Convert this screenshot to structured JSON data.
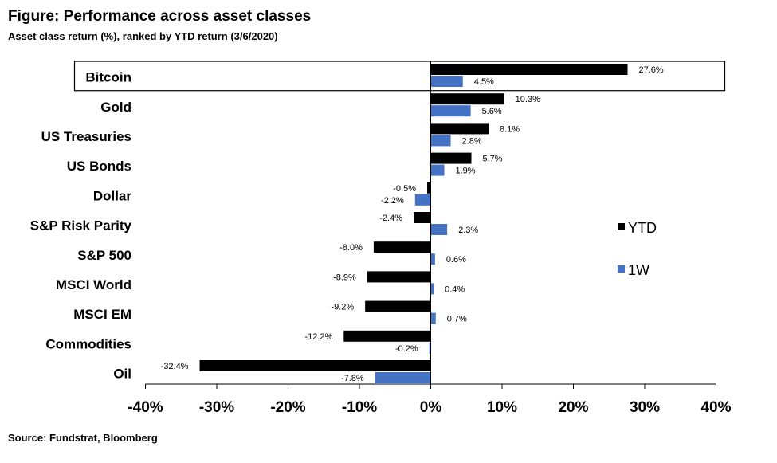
{
  "title": "Figure: Performance across asset classes",
  "subtitle": "Asset class return (%), ranked by YTD return (3/6/2020)",
  "source": "Source: Fundstrat, Bloomberg",
  "colors": {
    "ytd": "#000000",
    "w1": "#4472c4"
  },
  "chart_data": {
    "type": "bar",
    "orientation": "horizontal",
    "categories": [
      "Bitcoin",
      "Gold",
      "US Treasuries",
      "US Bonds",
      "Dollar",
      "S&P Risk Parity",
      "S&P 500",
      "MSCI World",
      "MSCI EM",
      "Commodities",
      "Oil"
    ],
    "series": [
      {
        "name": "YTD",
        "values": [
          27.6,
          10.3,
          8.1,
          5.7,
          -0.5,
          -2.4,
          -8.0,
          -8.9,
          -9.2,
          -12.2,
          -32.4
        ],
        "labels": [
          "27.6%",
          "10.3%",
          "8.1%",
          "5.7%",
          "-0.5%",
          "-2.4%",
          "-8.0%",
          "-8.9%",
          "-9.2%",
          "-12.2%",
          "-32.4%"
        ]
      },
      {
        "name": "1W",
        "values": [
          4.5,
          5.6,
          2.8,
          1.9,
          -2.2,
          2.3,
          0.6,
          0.4,
          0.7,
          -0.2,
          -7.8
        ],
        "labels": [
          "4.5%",
          "5.6%",
          "2.8%",
          "1.9%",
          "-2.2%",
          "2.3%",
          "0.6%",
          "0.4%",
          "0.7%",
          "-0.2%",
          "-7.8%"
        ]
      }
    ],
    "xlim": [
      -40,
      40
    ],
    "xticks": [
      -40,
      -30,
      -20,
      -10,
      0,
      10,
      20,
      30,
      40
    ],
    "xtick_labels": [
      "-40%",
      "-30%",
      "-20%",
      "-10%",
      "0%",
      "10%",
      "20%",
      "30%",
      "40%"
    ],
    "highlighted_category": "Bitcoin",
    "legend_position": "right",
    "grid": false
  }
}
